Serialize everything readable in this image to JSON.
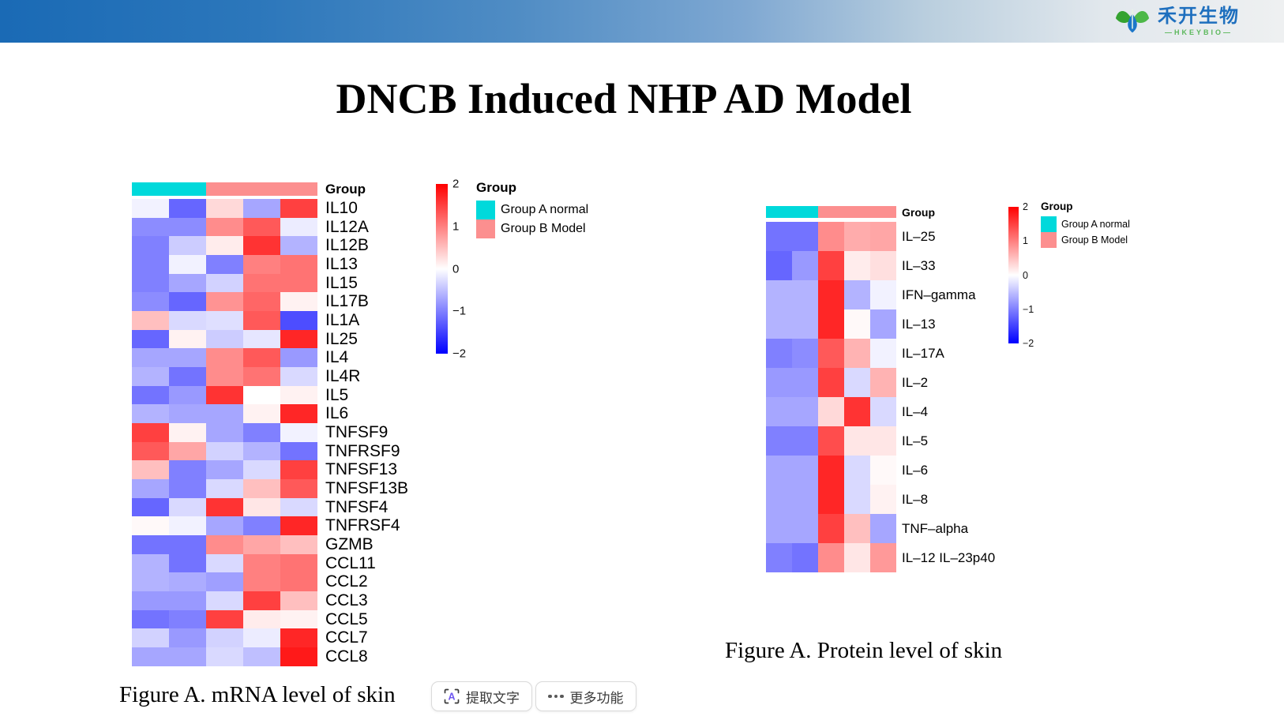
{
  "topbar": {
    "logo": {
      "name_cn": "禾开生物",
      "name_en": "—HKEYBIO—"
    }
  },
  "title": "DNCB Induced NHP AD Model",
  "overlay_buttons": {
    "extract_text": "提取文字",
    "more_features": "更多功能"
  },
  "chart_data": [
    {
      "type": "heatmap",
      "caption": "Figure A. mRNA level of skin",
      "annotation_label": "Group",
      "column_groups": [
        {
          "name": "Group A normal",
          "color": "#00D9DB",
          "columns": 2
        },
        {
          "name": "Group B Model",
          "color": "#FC8F8F",
          "columns": 3
        }
      ],
      "rows": [
        "IL10",
        "IL12A",
        "IL12B",
        "IL13",
        "IL15",
        "IL17B",
        "IL1A",
        "IL25",
        "IL4",
        "IL4R",
        "IL5",
        "IL6",
        "TNFSF9",
        "TNFRSF9",
        "TNFSF13",
        "TNFSF13B",
        "TNFSF4",
        "TNFRSF4",
        "GZMB",
        "CCL11",
        "CCL2",
        "CCL3",
        "CCL5",
        "CCL7",
        "CCL8"
      ],
      "values": [
        [
          -0.1,
          -1.2,
          0.3,
          -0.7,
          1.5
        ],
        [
          -0.9,
          -0.9,
          0.9,
          1.3,
          -0.15
        ],
        [
          -1.0,
          -0.4,
          0.15,
          1.6,
          -0.6
        ],
        [
          -1.0,
          -0.1,
          -1.0,
          1.0,
          1.1
        ],
        [
          -1.0,
          -0.7,
          -0.35,
          1.1,
          1.1
        ],
        [
          -0.9,
          -1.2,
          0.85,
          1.2,
          0.1
        ],
        [
          0.5,
          -0.3,
          -0.25,
          1.3,
          -1.4
        ],
        [
          -1.2,
          0.1,
          -0.4,
          -0.2,
          1.7
        ],
        [
          -0.7,
          -0.7,
          0.9,
          1.3,
          -0.8
        ],
        [
          -0.6,
          -1.1,
          0.9,
          1.1,
          -0.3
        ],
        [
          -1.1,
          -0.8,
          1.6,
          0.0,
          0.1
        ],
        [
          -0.6,
          -0.7,
          -0.7,
          0.1,
          1.7
        ],
        [
          1.5,
          0.1,
          -0.7,
          -1.0,
          -0.1
        ],
        [
          1.3,
          0.7,
          -0.35,
          -0.6,
          -1.1
        ],
        [
          0.5,
          -1.0,
          -0.7,
          -0.3,
          1.5
        ],
        [
          -0.7,
          -1.0,
          -0.3,
          0.5,
          1.3
        ],
        [
          -1.2,
          -0.3,
          1.6,
          0.2,
          -0.3
        ],
        [
          0.05,
          -0.1,
          -0.7,
          -1.0,
          1.7
        ],
        [
          -1.1,
          -1.1,
          0.9,
          0.7,
          0.5
        ],
        [
          -0.6,
          -1.1,
          -0.3,
          1.0,
          1.1
        ],
        [
          -0.6,
          -0.65,
          -0.75,
          1.0,
          1.1
        ],
        [
          -0.8,
          -0.8,
          -0.3,
          1.5,
          0.5
        ],
        [
          -1.1,
          -1.0,
          1.5,
          0.15,
          0.1
        ],
        [
          -0.35,
          -0.8,
          -0.35,
          -0.15,
          1.7
        ],
        [
          -0.7,
          -0.7,
          -0.3,
          -0.5,
          1.8
        ]
      ],
      "colorbar": {
        "domain": [
          2,
          -2
        ],
        "colors": [
          "#FF0000",
          "#FFFFFF",
          "#0000FF"
        ],
        "ticks": [
          {
            "label": "2",
            "value": 2
          },
          {
            "label": "1",
            "value": 1
          },
          {
            "label": "0",
            "value": 0
          },
          {
            "label": "−1",
            "value": -1
          },
          {
            "label": "−2",
            "value": -2
          }
        ]
      },
      "legend": {
        "title": "Group",
        "items": [
          {
            "label": "Group A normal",
            "color": "#00D9DB"
          },
          {
            "label": "Group B Model",
            "color": "#FC8F8F"
          }
        ]
      }
    },
    {
      "type": "heatmap",
      "caption": "Figure A. Protein level of skin",
      "annotation_label": "Group",
      "column_groups": [
        {
          "name": "Group A normal",
          "color": "#00D9DB",
          "columns": 2
        },
        {
          "name": "Group B Model",
          "color": "#FC8F8F",
          "columns": 3
        }
      ],
      "rows": [
        "IL–25",
        "IL–33",
        "IFN–gamma",
        "IL–13",
        "IL–17A",
        "IL–2",
        "IL–4",
        "IL–5",
        "IL–6",
        "IL–8",
        "TNF–alpha",
        "IL–12 IL–23p40"
      ],
      "values": [
        [
          -1.1,
          -1.1,
          0.9,
          0.65,
          0.7
        ],
        [
          -1.2,
          -0.8,
          1.5,
          0.15,
          0.25
        ],
        [
          -0.6,
          -0.6,
          1.7,
          -0.6,
          -0.1
        ],
        [
          -0.6,
          -0.6,
          1.7,
          0.05,
          -0.7
        ],
        [
          -1.0,
          -0.9,
          1.3,
          0.6,
          -0.1
        ],
        [
          -0.8,
          -0.8,
          1.5,
          -0.3,
          0.6
        ],
        [
          -0.7,
          -0.7,
          0.3,
          1.6,
          -0.3
        ],
        [
          -1.0,
          -1.0,
          1.4,
          0.2,
          0.2
        ],
        [
          -0.7,
          -0.7,
          1.7,
          -0.3,
          0.05
        ],
        [
          -0.7,
          -0.7,
          1.7,
          -0.3,
          0.1
        ],
        [
          -0.7,
          -0.7,
          1.5,
          0.5,
          -0.7
        ],
        [
          -1.0,
          -1.1,
          0.9,
          0.2,
          0.8
        ]
      ],
      "colorbar": {
        "domain": [
          2,
          -2
        ],
        "colors": [
          "#FF0000",
          "#FFFFFF",
          "#0000FF"
        ],
        "ticks": [
          {
            "label": "2",
            "value": 2
          },
          {
            "label": "1",
            "value": 1
          },
          {
            "label": "0",
            "value": 0
          },
          {
            "label": "−1",
            "value": -1
          },
          {
            "label": "−2",
            "value": -2
          }
        ]
      },
      "legend": {
        "title": "Group",
        "items": [
          {
            "label": "Group A normal",
            "color": "#00D9DB"
          },
          {
            "label": "Group B Model",
            "color": "#FC8F8F"
          }
        ]
      }
    }
  ]
}
